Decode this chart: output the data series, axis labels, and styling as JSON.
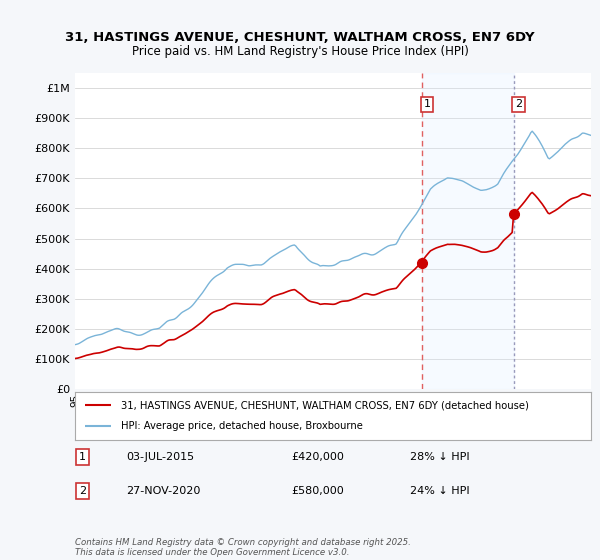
{
  "title1": "31, HASTINGS AVENUE, CHESHUNT, WALTHAM CROSS, EN7 6DY",
  "title2": "Price paid vs. HM Land Registry's House Price Index (HPI)",
  "ylim": [
    0,
    1050000
  ],
  "yticks": [
    0,
    100000,
    200000,
    300000,
    400000,
    500000,
    600000,
    700000,
    800000,
    900000,
    1000000
  ],
  "ytick_labels": [
    "£0",
    "£100K",
    "£200K",
    "£300K",
    "£400K",
    "£500K",
    "£600K",
    "£700K",
    "£800K",
    "£900K",
    "£1M"
  ],
  "sale1_date": 2015.5,
  "sale1_price": 420000,
  "sale1_label": "03-JUL-2015",
  "sale1_hpi_text": "28% ↓ HPI",
  "sale1_price_text": "£420,000",
  "sale2_date": 2020.92,
  "sale2_price": 580000,
  "sale2_label": "27-NOV-2020",
  "sale2_hpi_text": "24% ↓ HPI",
  "sale2_price_text": "£580,000",
  "hpi_color": "#7ab4d8",
  "price_color": "#cc0000",
  "vline1_color": "#e06060",
  "vline2_color": "#aaaacc",
  "shade_color": "#ddeeff",
  "background_color": "#f5f7fa",
  "plot_bg": "#ffffff",
  "legend_line1": "31, HASTINGS AVENUE, CHESHUNT, WALTHAM CROSS, EN7 6DY (detached house)",
  "legend_line2": "HPI: Average price, detached house, Broxbourne",
  "footer": "Contains HM Land Registry data © Crown copyright and database right 2025.\nThis data is licensed under the Open Government Licence v3.0.",
  "xstart": 1995,
  "xend": 2025.5
}
